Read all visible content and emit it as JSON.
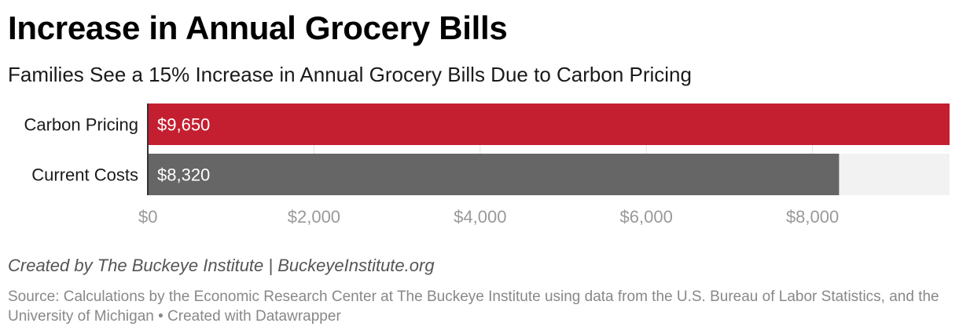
{
  "title": "Increase in Annual Grocery Bills",
  "subtitle": "Families See a 15% Increase in Annual Grocery Bills Due to Carbon Pricing",
  "byline": "Created by The Buckeye Institute | BuckeyeInstitute.org",
  "source": "Source: Calculations by the Economic Research Center at The Buckeye Institute using data from the U.S. Bureau of Labor Statistics, and the University of Michigan • Created with Datawrapper",
  "colors": {
    "carbon": "#c41f30",
    "current": "#666666",
    "track": "#f2f2f2",
    "tick_text": "#999999",
    "grid": "#e0e0e0"
  },
  "chart_data": {
    "type": "bar",
    "orientation": "horizontal",
    "categories": [
      "Carbon Pricing",
      "Current Costs"
    ],
    "values": [
      9650,
      8320
    ],
    "value_labels": [
      "$9,650",
      "$8,320"
    ],
    "xlim": [
      0,
      9650
    ],
    "xticks": [
      0,
      2000,
      4000,
      6000,
      8000
    ],
    "xtick_labels": [
      "$0",
      "$2,000",
      "$4,000",
      "$6,000",
      "$8,000"
    ],
    "grid": true
  }
}
